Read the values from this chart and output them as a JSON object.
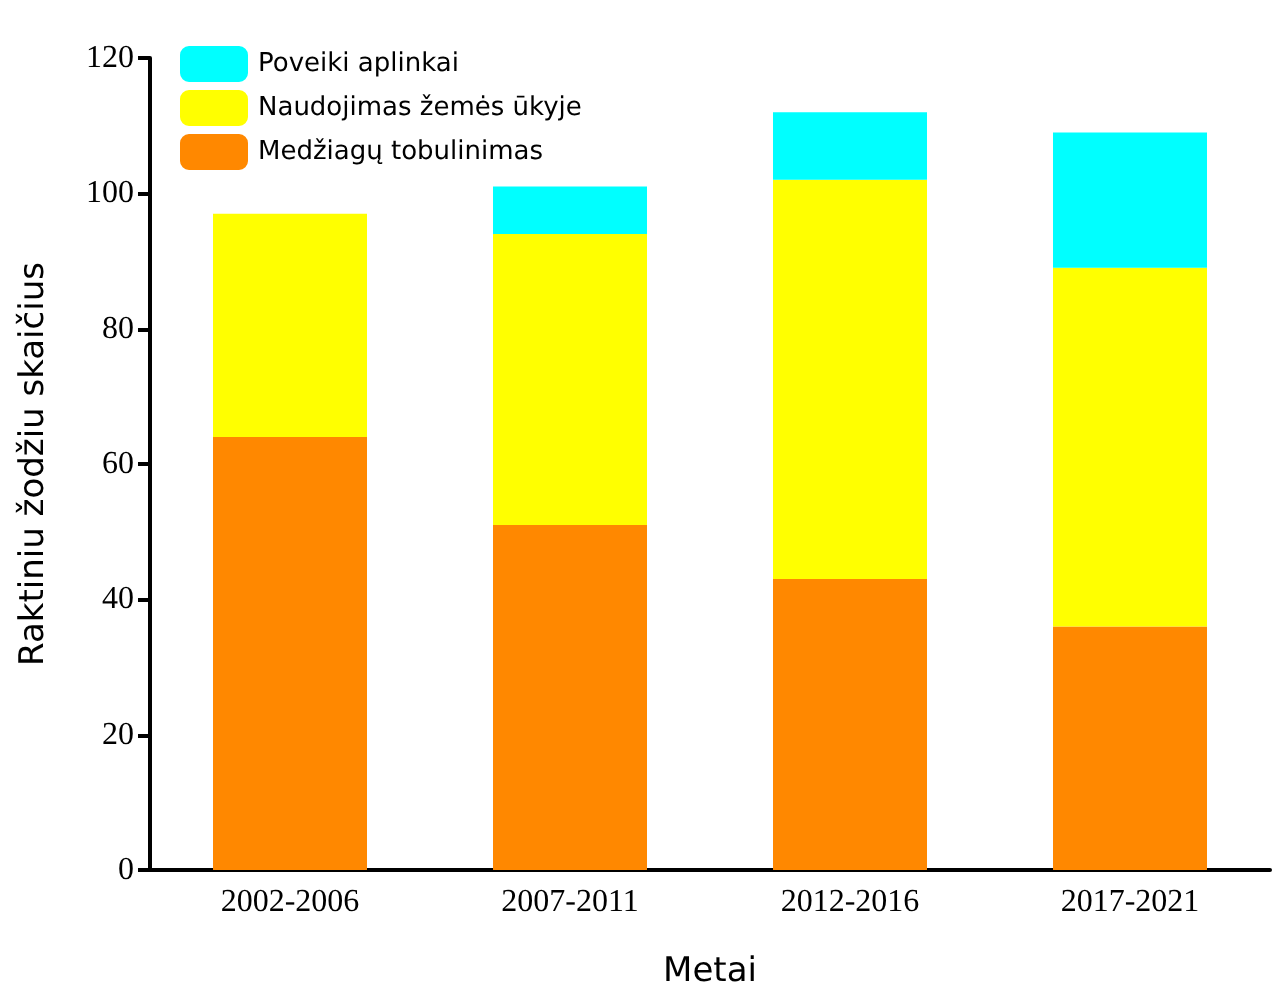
{
  "chart_data": {
    "type": "bar",
    "stacked": true,
    "xlabel": "Metai",
    "ylabel": "Raktiniu žodžiu skaičius",
    "categories": [
      "2002-2006",
      "2007-2011",
      "2012-2016",
      "2017-2021"
    ],
    "series": [
      {
        "name": "Medžiagų tobulinimas",
        "color": "#ff8800",
        "values": [
          64,
          51,
          43,
          36
        ]
      },
      {
        "name": "Naudojimas žemės ūkyje",
        "color": "#ffff00",
        "values": [
          33,
          43,
          59,
          53
        ]
      },
      {
        "name": "Poveiki aplinkai",
        "color": "#00ffff",
        "values": [
          null,
          7,
          10,
          20
        ]
      }
    ],
    "ylim": [
      0,
      120
    ],
    "yticks": [
      0,
      20,
      40,
      60,
      80,
      100,
      120
    ],
    "grid": false,
    "legend": "top left"
  }
}
